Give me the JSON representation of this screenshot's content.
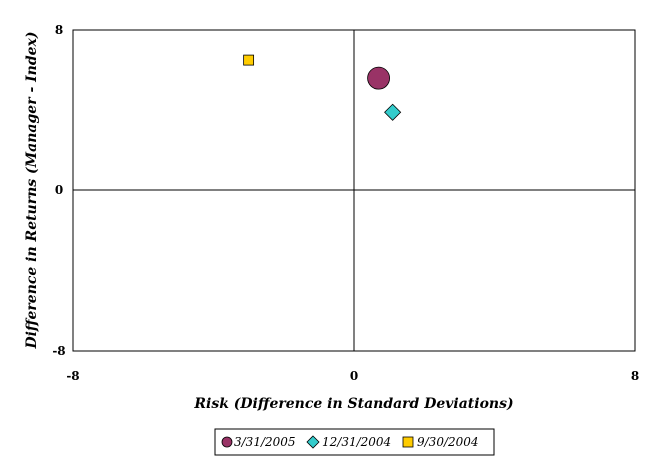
{
  "chart_data": {
    "type": "scatter",
    "xlabel": "Risk (Difference in Standard Deviations)",
    "ylabel": "Difference in Returns (Manager - Index)",
    "xlim": [
      -8,
      8
    ],
    "ylim": [
      -8,
      8
    ],
    "x_ticks": [
      "-8",
      "0",
      "8"
    ],
    "y_ticks": [
      "8",
      "0",
      "-8"
    ],
    "grid": false,
    "legend_position": "bottom",
    "series": [
      {
        "name": "3/31/2005",
        "marker": "circle",
        "color": "#993366",
        "points": [
          [
            0.7,
            5.6
          ]
        ]
      },
      {
        "name": "12/31/2004",
        "marker": "diamond",
        "color": "#33CCCC",
        "points": [
          [
            1.1,
            3.9
          ]
        ]
      },
      {
        "name": "9/30/2004",
        "marker": "square",
        "color": "#FFCC00",
        "points": [
          [
            -3.0,
            6.5
          ]
        ]
      }
    ]
  }
}
